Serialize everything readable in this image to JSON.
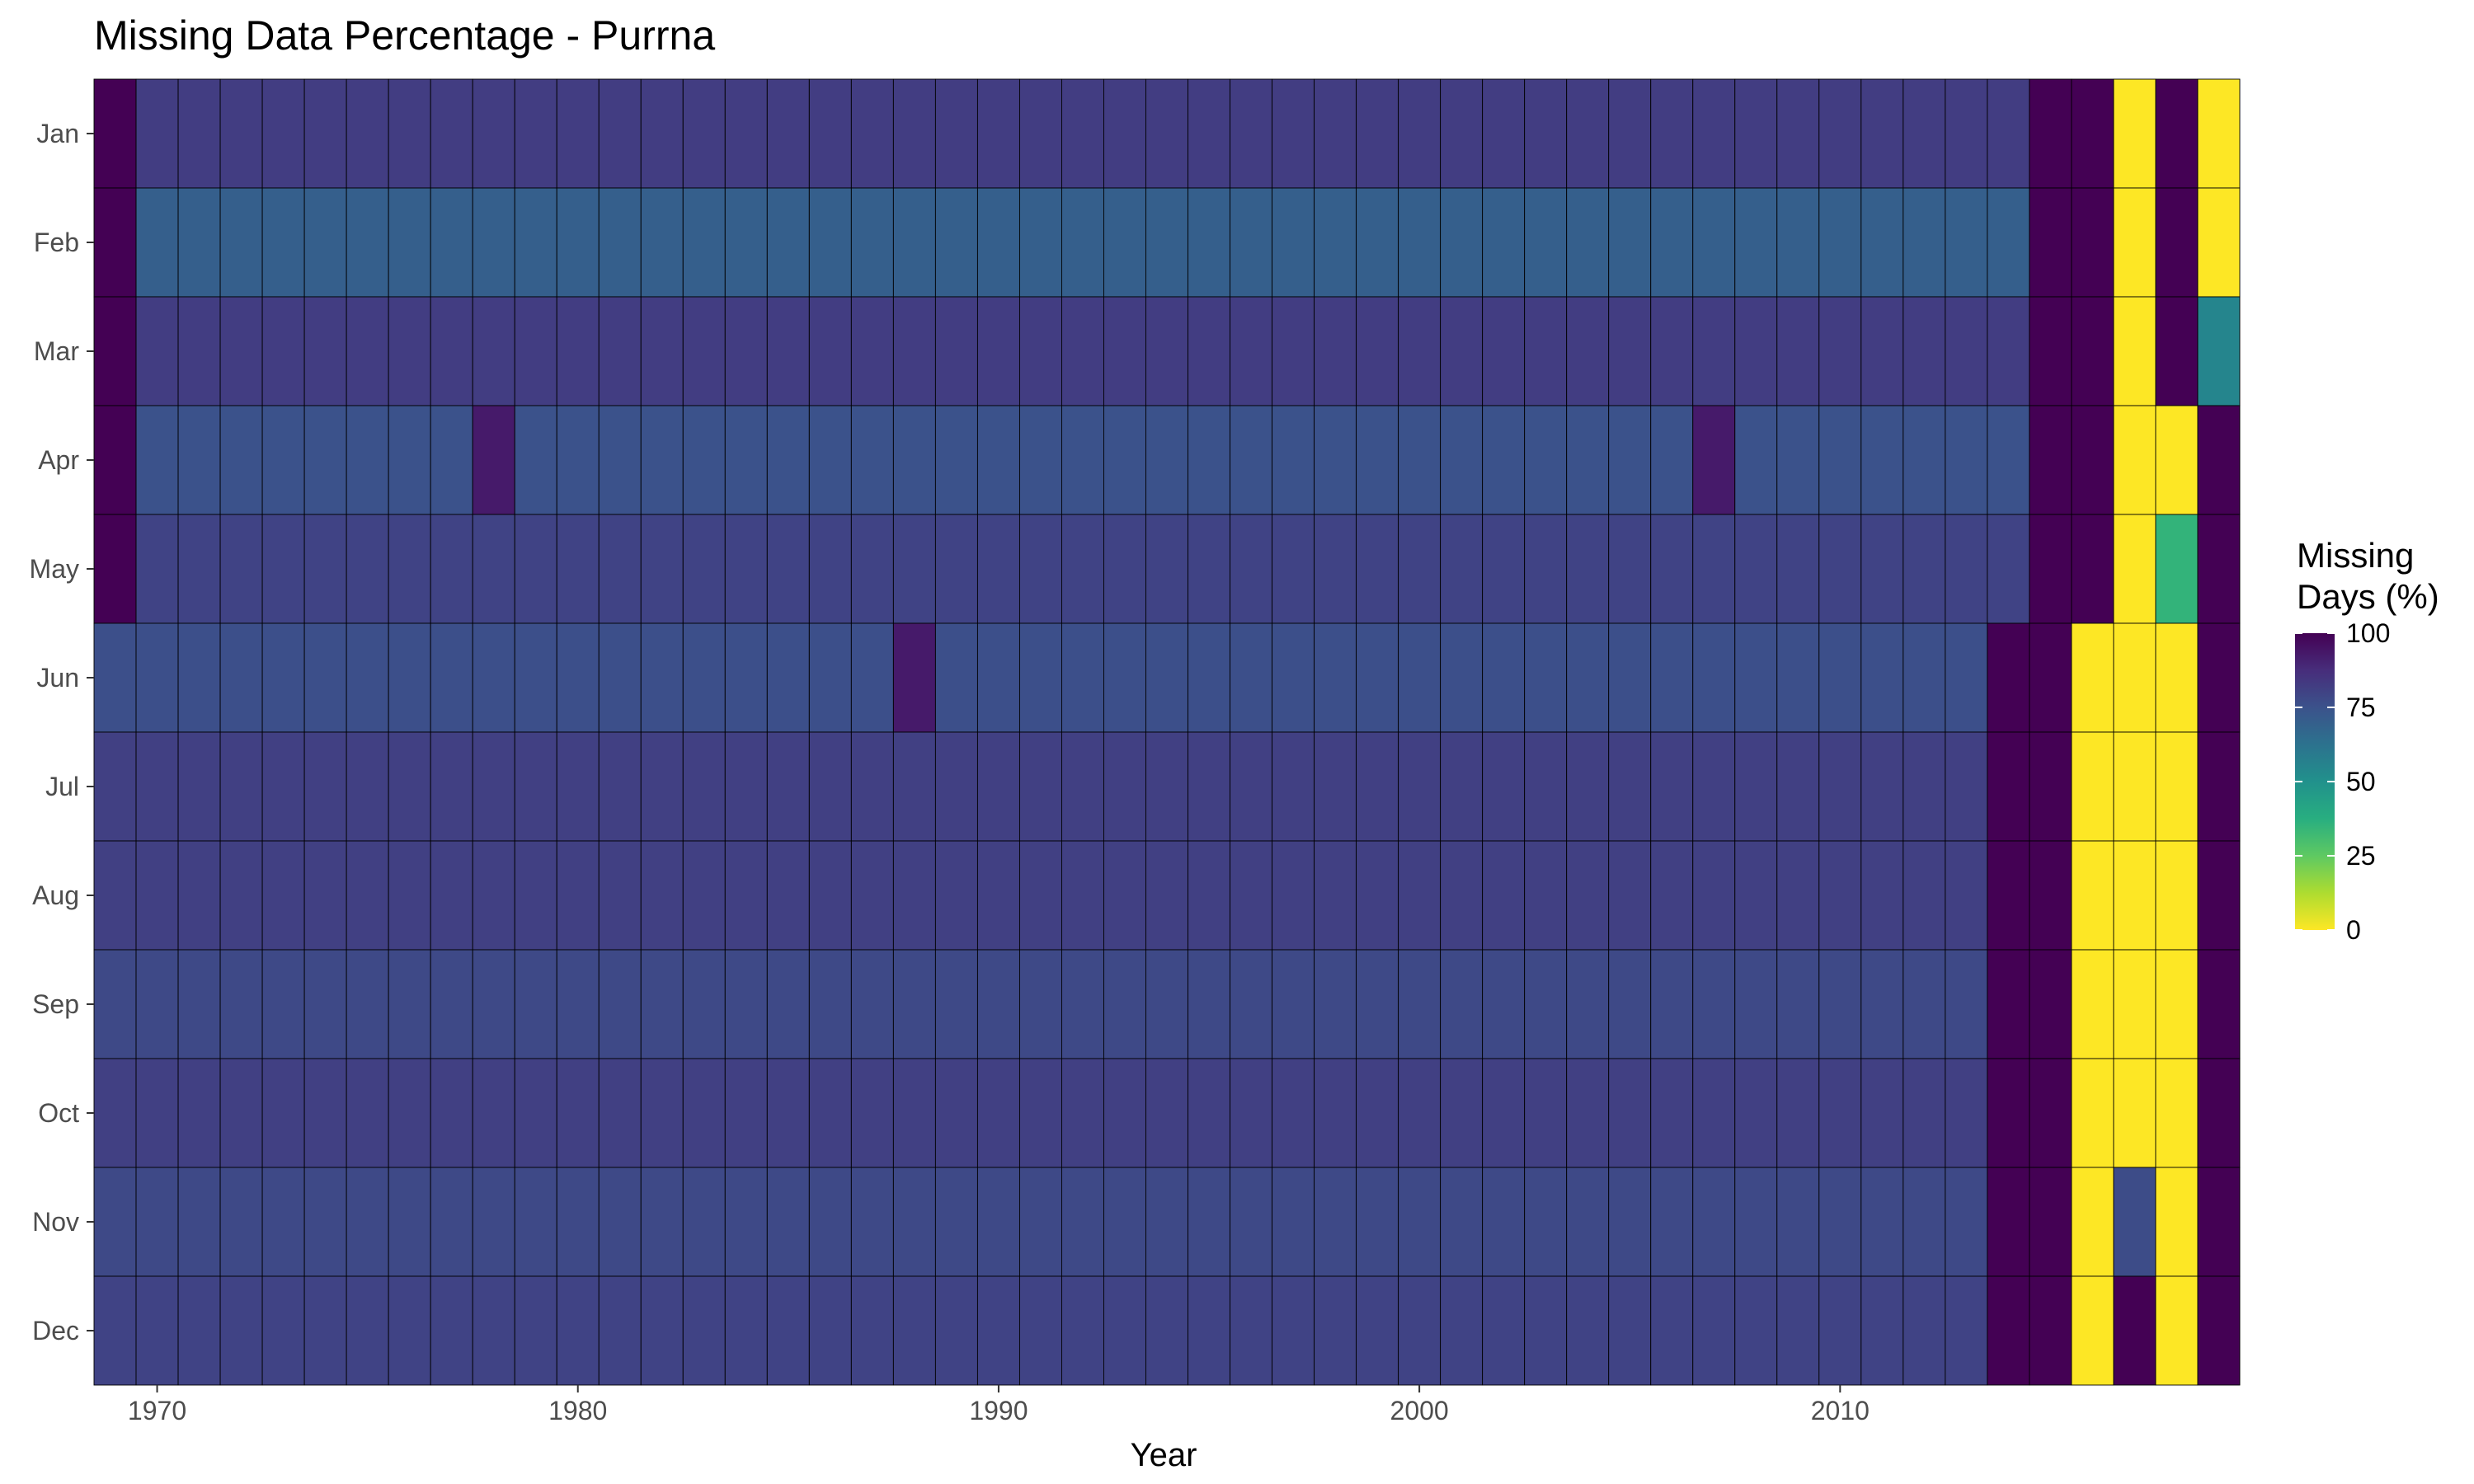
{
  "chart_data": {
    "type": "heatmap",
    "title": "Missing Data Percentage - Purrna",
    "xlabel": "Year",
    "ylabel": "",
    "x_tick_labels": [
      "1970",
      "1980",
      "1990",
      "2000",
      "2010"
    ],
    "x_tick_values": [
      1970,
      1980,
      1990,
      2000,
      2010
    ],
    "xlim": [
      1968.5,
      2019.5
    ],
    "months": [
      "Jan",
      "Feb",
      "Mar",
      "Apr",
      "May",
      "Jun",
      "Jul",
      "Aug",
      "Sep",
      "Oct",
      "Nov",
      "Dec"
    ],
    "year_start": 1969,
    "year_end": 2019,
    "legend": {
      "title_lines": [
        "Missing",
        "Days (%)"
      ],
      "ticks": [
        100,
        75,
        50,
        25,
        0
      ],
      "range": [
        0,
        100
      ],
      "palette": "viridis-reversed",
      "placement": "right"
    },
    "baseline_values": {
      "Jan": 82,
      "Feb": 70,
      "Mar": 82,
      "Apr": 75,
      "May": 80,
      "Jun": 76,
      "Jul": 81,
      "Aug": 81,
      "Sep": 78,
      "Oct": 81,
      "Nov": 78,
      "Dec": 80
    },
    "cells": [
      {
        "year": 1969,
        "month": "Jan",
        "value": 100
      },
      {
        "year": 1969,
        "month": "Feb",
        "value": 100
      },
      {
        "year": 1969,
        "month": "Mar",
        "value": 100
      },
      {
        "year": 1969,
        "month": "Apr",
        "value": 100
      },
      {
        "year": 1969,
        "month": "May",
        "value": 100
      },
      {
        "year": 1978,
        "month": "Apr",
        "value": 93
      },
      {
        "year": 2007,
        "month": "Apr",
        "value": 93
      },
      {
        "year": 1988,
        "month": "Jun",
        "value": 93
      },
      {
        "year": 2014,
        "month": "Jun",
        "value": 100
      },
      {
        "year": 2014,
        "month": "Jul",
        "value": 100
      },
      {
        "year": 2014,
        "month": "Aug",
        "value": 100
      },
      {
        "year": 2014,
        "month": "Sep",
        "value": 100
      },
      {
        "year": 2014,
        "month": "Oct",
        "value": 100
      },
      {
        "year": 2014,
        "month": "Nov",
        "value": 100
      },
      {
        "year": 2014,
        "month": "Dec",
        "value": 100
      },
      {
        "year": 2015,
        "month": "Jan",
        "value": 100
      },
      {
        "year": 2015,
        "month": "Feb",
        "value": 100
      },
      {
        "year": 2015,
        "month": "Mar",
        "value": 100
      },
      {
        "year": 2015,
        "month": "Apr",
        "value": 100
      },
      {
        "year": 2015,
        "month": "May",
        "value": 100
      },
      {
        "year": 2015,
        "month": "Jun",
        "value": 100
      },
      {
        "year": 2015,
        "month": "Jul",
        "value": 100
      },
      {
        "year": 2015,
        "month": "Aug",
        "value": 100
      },
      {
        "year": 2015,
        "month": "Sep",
        "value": 100
      },
      {
        "year": 2015,
        "month": "Oct",
        "value": 100
      },
      {
        "year": 2015,
        "month": "Nov",
        "value": 100
      },
      {
        "year": 2015,
        "month": "Dec",
        "value": 100
      },
      {
        "year": 2016,
        "month": "Jan",
        "value": 100
      },
      {
        "year": 2016,
        "month": "Feb",
        "value": 100
      },
      {
        "year": 2016,
        "month": "Mar",
        "value": 100
      },
      {
        "year": 2016,
        "month": "Apr",
        "value": 100
      },
      {
        "year": 2016,
        "month": "May",
        "value": 100
      },
      {
        "year": 2016,
        "month": "Jun",
        "value": 0
      },
      {
        "year": 2016,
        "month": "Jul",
        "value": 0
      },
      {
        "year": 2016,
        "month": "Aug",
        "value": 0
      },
      {
        "year": 2016,
        "month": "Sep",
        "value": 0
      },
      {
        "year": 2016,
        "month": "Oct",
        "value": 0
      },
      {
        "year": 2016,
        "month": "Nov",
        "value": 0
      },
      {
        "year": 2016,
        "month": "Dec",
        "value": 0
      },
      {
        "year": 2017,
        "month": "Jan",
        "value": 0
      },
      {
        "year": 2017,
        "month": "Feb",
        "value": 0
      },
      {
        "year": 2017,
        "month": "Mar",
        "value": 0
      },
      {
        "year": 2017,
        "month": "Apr",
        "value": 0
      },
      {
        "year": 2017,
        "month": "May",
        "value": 0
      },
      {
        "year": 2017,
        "month": "Jun",
        "value": 0
      },
      {
        "year": 2017,
        "month": "Jul",
        "value": 0
      },
      {
        "year": 2017,
        "month": "Aug",
        "value": 0
      },
      {
        "year": 2017,
        "month": "Sep",
        "value": 0
      },
      {
        "year": 2017,
        "month": "Oct",
        "value": 0
      },
      {
        "year": 2017,
        "month": "Nov",
        "value": 77
      },
      {
        "year": 2017,
        "month": "Dec",
        "value": 100
      },
      {
        "year": 2018,
        "month": "Jan",
        "value": 100
      },
      {
        "year": 2018,
        "month": "Feb",
        "value": 100
      },
      {
        "year": 2018,
        "month": "Mar",
        "value": 100
      },
      {
        "year": 2018,
        "month": "Apr",
        "value": 0
      },
      {
        "year": 2018,
        "month": "May",
        "value": 35
      },
      {
        "year": 2018,
        "month": "Jun",
        "value": 0
      },
      {
        "year": 2018,
        "month": "Jul",
        "value": 0
      },
      {
        "year": 2018,
        "month": "Aug",
        "value": 0
      },
      {
        "year": 2018,
        "month": "Sep",
        "value": 0
      },
      {
        "year": 2018,
        "month": "Oct",
        "value": 0
      },
      {
        "year": 2018,
        "month": "Nov",
        "value": 0
      },
      {
        "year": 2018,
        "month": "Dec",
        "value": 0
      },
      {
        "year": 2019,
        "month": "Jan",
        "value": 0
      },
      {
        "year": 2019,
        "month": "Feb",
        "value": 0
      },
      {
        "year": 2019,
        "month": "Mar",
        "value": 55
      },
      {
        "year": 2019,
        "month": "Apr",
        "value": 100
      },
      {
        "year": 2019,
        "month": "May",
        "value": 100
      },
      {
        "year": 2019,
        "month": "Jun",
        "value": 100
      },
      {
        "year": 2019,
        "month": "Jul",
        "value": 100
      },
      {
        "year": 2019,
        "month": "Aug",
        "value": 100
      },
      {
        "year": 2019,
        "month": "Sep",
        "value": 100
      },
      {
        "year": 2019,
        "month": "Oct",
        "value": 100
      },
      {
        "year": 2019,
        "month": "Nov",
        "value": 100
      },
      {
        "year": 2019,
        "month": "Dec",
        "value": 100
      }
    ]
  }
}
